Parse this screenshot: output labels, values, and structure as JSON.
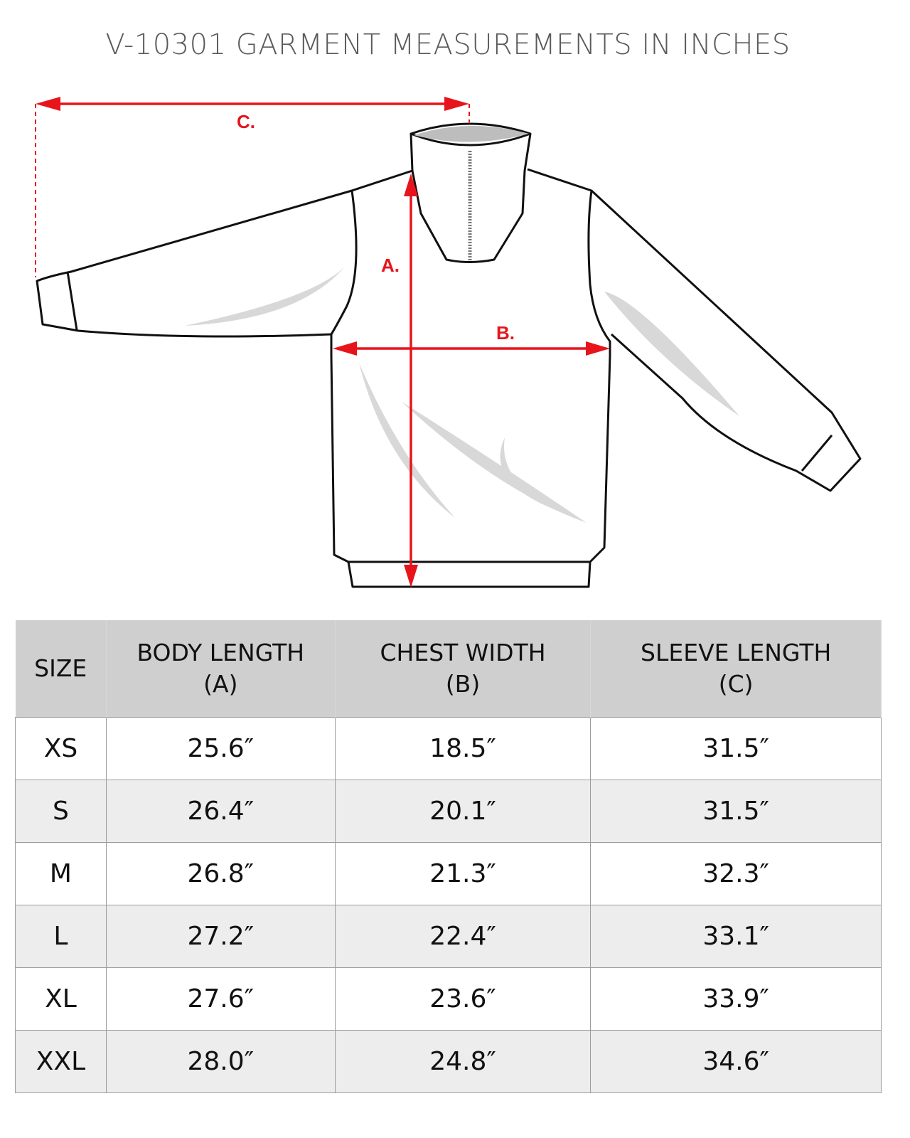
{
  "title": "V-10301 GARMENT MEASUREMENTS IN INCHES",
  "diagram": {
    "labels": {
      "a": "A.",
      "b": "B.",
      "c": "C."
    },
    "arrow_color": "#e8141b"
  },
  "table": {
    "headers": [
      {
        "line1": "SIZE",
        "line2": ""
      },
      {
        "line1": "BODY LENGTH",
        "line2": "(A)"
      },
      {
        "line1": "CHEST WIDTH",
        "line2": "(B)"
      },
      {
        "line1": "SLEEVE LENGTH",
        "line2": "(C)"
      }
    ],
    "rows": [
      [
        "XS",
        "25.6″",
        "18.5″",
        "31.5″"
      ],
      [
        "S",
        "26.4″",
        "20.1″",
        "31.5″"
      ],
      [
        "M",
        "26.8″",
        "21.3″",
        "32.3″"
      ],
      [
        "L",
        "27.2″",
        "22.4″",
        "33.1″"
      ],
      [
        "XL",
        "27.6″",
        "23.6″",
        "33.9″"
      ],
      [
        "XXL",
        "28.0″",
        "24.8″",
        "34.6″"
      ]
    ]
  }
}
